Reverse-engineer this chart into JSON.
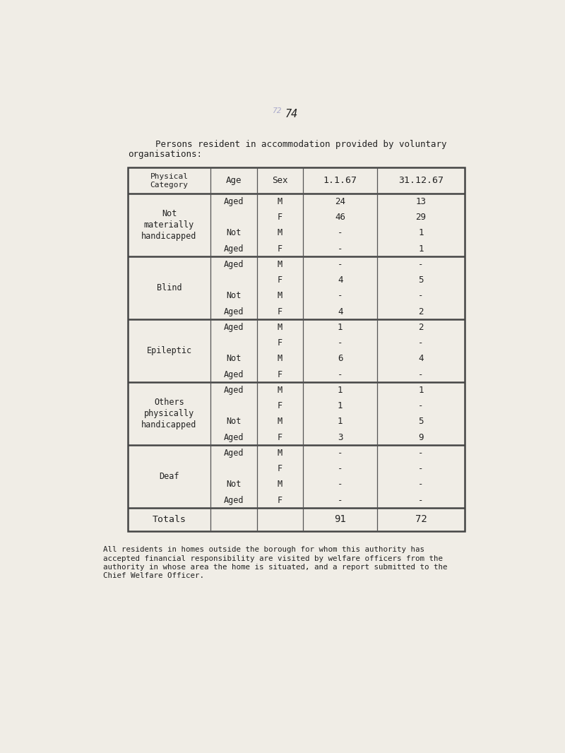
{
  "page_number": "74",
  "page_number_prefix": "72",
  "title_line1": "Persons resident in accommodation provided by voluntary",
  "title_line2": "organisations:",
  "bg_color": "#f0ede6",
  "text_color": "#222222",
  "faded_text_color": "#aaaacc",
  "col_headers": [
    "Physical\nCategory",
    "Age",
    "Sex",
    "1.1.67",
    "31.12.67"
  ],
  "sections": [
    {
      "category": "Not\nmaterially\nhandicapped",
      "rows": [
        {
          "age": "Aged",
          "sex": "M",
          "v1": "24",
          "v2": "13"
        },
        {
          "age": "",
          "sex": "F",
          "v1": "46",
          "v2": "29"
        },
        {
          "age": "Not",
          "sex": "M",
          "v1": "-",
          "v2": "1"
        },
        {
          "age": "Aged",
          "sex": "F",
          "v1": "-",
          "v2": "1"
        }
      ]
    },
    {
      "category": "Blind",
      "rows": [
        {
          "age": "Aged",
          "sex": "M",
          "v1": "-",
          "v2": "-"
        },
        {
          "age": "",
          "sex": "F",
          "v1": "4",
          "v2": "5"
        },
        {
          "age": "Not",
          "sex": "M",
          "v1": "-",
          "v2": "-"
        },
        {
          "age": "Aged",
          "sex": "F",
          "v1": "4",
          "v2": "2"
        }
      ]
    },
    {
      "category": "Epileptic",
      "rows": [
        {
          "age": "Aged",
          "sex": "M",
          "v1": "1",
          "v2": "2"
        },
        {
          "age": "",
          "sex": "F",
          "v1": "-",
          "v2": "-"
        },
        {
          "age": "Not",
          "sex": "M",
          "v1": "6",
          "v2": "4"
        },
        {
          "age": "Aged",
          "sex": "F",
          "v1": "-",
          "v2": "-"
        }
      ]
    },
    {
      "category": "Others\nphysically\nhandicapped",
      "rows": [
        {
          "age": "Aged",
          "sex": "M",
          "v1": "1",
          "v2": "1"
        },
        {
          "age": "",
          "sex": "F",
          "v1": "1",
          "v2": "-"
        },
        {
          "age": "Not",
          "sex": "M",
          "v1": "1",
          "v2": "5"
        },
        {
          "age": "Aged",
          "sex": "F",
          "v1": "3",
          "v2": "9"
        }
      ]
    },
    {
      "category": "Deaf",
      "rows": [
        {
          "age": "Aged",
          "sex": "M",
          "v1": "-",
          "v2": "-"
        },
        {
          "age": "",
          "sex": "F",
          "v1": "-",
          "v2": "-"
        },
        {
          "age": "Not",
          "sex": "M",
          "v1": "-",
          "v2": "-"
        },
        {
          "age": "Aged",
          "sex": "F",
          "v1": "-",
          "v2": "-"
        }
      ]
    }
  ],
  "totals_label": "Totals",
  "total_v1": "91",
  "total_v2": "72",
  "footer_lines": [
    "All residents in homes outside the borough for whom this authority has",
    "accepted financial responsibility are visited by welfare officers from the",
    "authority in whose area the home is situated, and a report submitted to the",
    "Chief Welfare Officer."
  ]
}
